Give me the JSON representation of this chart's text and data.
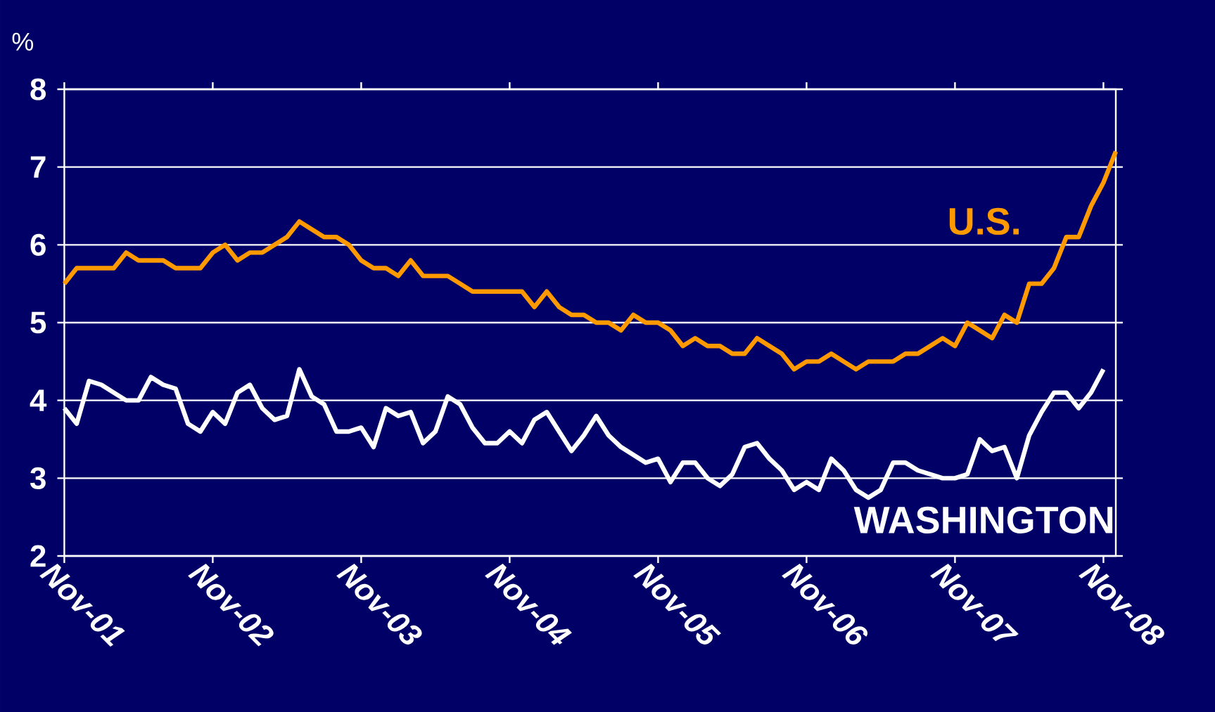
{
  "chart_data": {
    "type": "line",
    "ylabel": "%",
    "xlim": [
      "2001-11",
      "2008-12"
    ],
    "ylim": [
      2,
      8
    ],
    "xticks": [
      {
        "value": "2001-11",
        "label": "Nov-01"
      },
      {
        "value": "2002-11",
        "label": "Nov-02"
      },
      {
        "value": "2003-11",
        "label": "Nov-03"
      },
      {
        "value": "2004-11",
        "label": "Nov-04"
      },
      {
        "value": "2005-11",
        "label": "Nov-05"
      },
      {
        "value": "2006-11",
        "label": "Nov-06"
      },
      {
        "value": "2007-11",
        "label": "Nov-07"
      },
      {
        "value": "2008-11",
        "label": "Nov-08"
      }
    ],
    "yticks": [
      2,
      3,
      4,
      5,
      6,
      7,
      8
    ],
    "grid": "y",
    "series": [
      {
        "name": "U.S.",
        "color": "#ff9900",
        "x": [
          "2001-11",
          "2001-12",
          "2002-01",
          "2002-02",
          "2002-03",
          "2002-04",
          "2002-05",
          "2002-06",
          "2002-07",
          "2002-08",
          "2002-09",
          "2002-10",
          "2002-11",
          "2002-12",
          "2003-01",
          "2003-02",
          "2003-03",
          "2003-04",
          "2003-05",
          "2003-06",
          "2003-07",
          "2003-08",
          "2003-09",
          "2003-10",
          "2003-11",
          "2003-12",
          "2004-01",
          "2004-02",
          "2004-03",
          "2004-04",
          "2004-05",
          "2004-06",
          "2004-07",
          "2004-08",
          "2004-09",
          "2004-10",
          "2004-11",
          "2004-12",
          "2005-01",
          "2005-02",
          "2005-03",
          "2005-04",
          "2005-05",
          "2005-06",
          "2005-07",
          "2005-08",
          "2005-09",
          "2005-10",
          "2005-11",
          "2005-12",
          "2006-01",
          "2006-02",
          "2006-03",
          "2006-04",
          "2006-05",
          "2006-06",
          "2006-07",
          "2006-08",
          "2006-09",
          "2006-10",
          "2006-11",
          "2006-12",
          "2007-01",
          "2007-02",
          "2007-03",
          "2007-04",
          "2007-05",
          "2007-06",
          "2007-07",
          "2007-08",
          "2007-09",
          "2007-10",
          "2007-11",
          "2007-12",
          "2008-01",
          "2008-02",
          "2008-03",
          "2008-04",
          "2008-05",
          "2008-06",
          "2008-07",
          "2008-08",
          "2008-09",
          "2008-10",
          "2008-11",
          "2008-12"
        ],
        "values": [
          5.5,
          5.7,
          5.7,
          5.7,
          5.7,
          5.9,
          5.8,
          5.8,
          5.8,
          5.7,
          5.7,
          5.7,
          5.9,
          6.0,
          5.8,
          5.9,
          5.9,
          6.0,
          6.1,
          6.3,
          6.2,
          6.1,
          6.1,
          6.0,
          5.8,
          5.7,
          5.7,
          5.6,
          5.8,
          5.6,
          5.6,
          5.6,
          5.5,
          5.4,
          5.4,
          5.4,
          5.4,
          5.4,
          5.2,
          5.4,
          5.2,
          5.1,
          5.1,
          5.0,
          5.0,
          4.9,
          5.1,
          5.0,
          5.0,
          4.9,
          4.7,
          4.8,
          4.7,
          4.7,
          4.6,
          4.6,
          4.8,
          4.7,
          4.6,
          4.4,
          4.5,
          4.5,
          4.6,
          4.5,
          4.4,
          4.5,
          4.5,
          4.5,
          4.6,
          4.6,
          4.7,
          4.8,
          4.7,
          5.0,
          4.9,
          4.8,
          5.1,
          5.0,
          5.5,
          5.5,
          5.7,
          6.1,
          6.1,
          6.5,
          6.8,
          7.2
        ]
      },
      {
        "name": "WASHINGTON",
        "color": "#ffffff",
        "x": [
          "2001-11",
          "2001-12",
          "2002-01",
          "2002-02",
          "2002-03",
          "2002-04",
          "2002-05",
          "2002-06",
          "2002-07",
          "2002-08",
          "2002-09",
          "2002-10",
          "2002-11",
          "2002-12",
          "2003-01",
          "2003-02",
          "2003-03",
          "2003-04",
          "2003-05",
          "2003-06",
          "2003-07",
          "2003-08",
          "2003-09",
          "2003-10",
          "2003-11",
          "2003-12",
          "2004-01",
          "2004-02",
          "2004-03",
          "2004-04",
          "2004-05",
          "2004-06",
          "2004-07",
          "2004-08",
          "2004-09",
          "2004-10",
          "2004-11",
          "2004-12",
          "2005-01",
          "2005-02",
          "2005-03",
          "2005-04",
          "2005-05",
          "2005-06",
          "2005-07",
          "2005-08",
          "2005-09",
          "2005-10",
          "2005-11",
          "2005-12",
          "2006-01",
          "2006-02",
          "2006-03",
          "2006-04",
          "2006-05",
          "2006-06",
          "2006-07",
          "2006-08",
          "2006-09",
          "2006-10",
          "2006-11",
          "2006-12",
          "2007-01",
          "2007-02",
          "2007-03",
          "2007-04",
          "2007-05",
          "2007-06",
          "2007-07",
          "2007-08",
          "2007-09",
          "2007-10",
          "2007-11",
          "2007-12",
          "2008-01",
          "2008-02",
          "2008-03",
          "2008-04",
          "2008-05",
          "2008-06",
          "2008-07",
          "2008-08",
          "2008-09",
          "2008-10",
          "2008-11"
        ],
        "values": [
          3.9,
          3.7,
          4.25,
          4.2,
          4.1,
          4.0,
          4.0,
          4.3,
          4.2,
          4.15,
          3.7,
          3.6,
          3.85,
          3.7,
          4.1,
          4.2,
          3.9,
          3.75,
          3.8,
          4.4,
          4.05,
          3.95,
          3.6,
          3.6,
          3.65,
          3.4,
          3.9,
          3.8,
          3.85,
          3.45,
          3.6,
          4.05,
          3.95,
          3.65,
          3.45,
          3.45,
          3.6,
          3.45,
          3.75,
          3.85,
          3.6,
          3.35,
          3.55,
          3.8,
          3.55,
          3.4,
          3.3,
          3.2,
          3.25,
          2.95,
          3.2,
          3.2,
          3.0,
          2.9,
          3.05,
          3.4,
          3.45,
          3.25,
          3.1,
          2.85,
          2.95,
          2.85,
          3.25,
          3.1,
          2.85,
          2.75,
          2.85,
          3.2,
          3.2,
          3.1,
          3.05,
          3.0,
          3.0,
          3.05,
          3.5,
          3.35,
          3.4,
          3.0,
          3.55,
          3.85,
          4.1,
          4.1,
          3.9,
          4.1,
          4.4
        ]
      }
    ]
  }
}
